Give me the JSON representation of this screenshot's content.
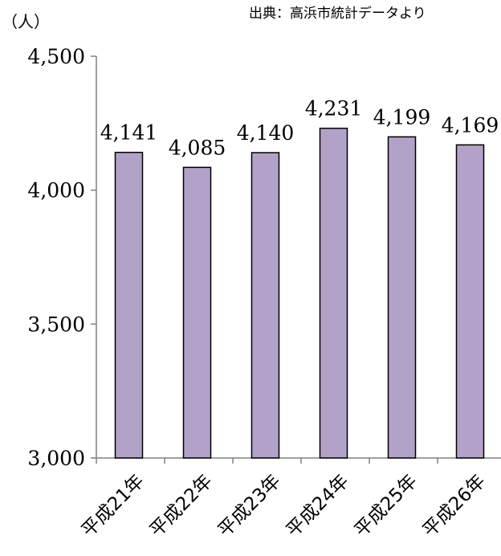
{
  "header": {
    "unit": "（人）",
    "source": "出典：高浜市統計データより"
  },
  "colors": {
    "bar_fill": "#B3A2C7",
    "bar_stroke": "#000000",
    "axis": "#808080"
  },
  "chart_data": {
    "type": "bar",
    "categories": [
      "平成21年",
      "平成22年",
      "平成23年",
      "平成24年",
      "平成25年",
      "平成26年"
    ],
    "values": [
      4141,
      4085,
      4140,
      4231,
      4199,
      4169
    ],
    "data_labels": [
      "4,141",
      "4,085",
      "4,140",
      "4,231",
      "4,199",
      "4,169"
    ],
    "y_ticks": [
      3000,
      3500,
      4000,
      4500
    ],
    "y_tick_labels": [
      "3,000",
      "3,500",
      "4,000",
      "4,500"
    ],
    "ylim": [
      3000,
      4500
    ],
    "title": "",
    "xlabel": "",
    "ylabel": "（人）",
    "grid": false,
    "legend": "none"
  }
}
